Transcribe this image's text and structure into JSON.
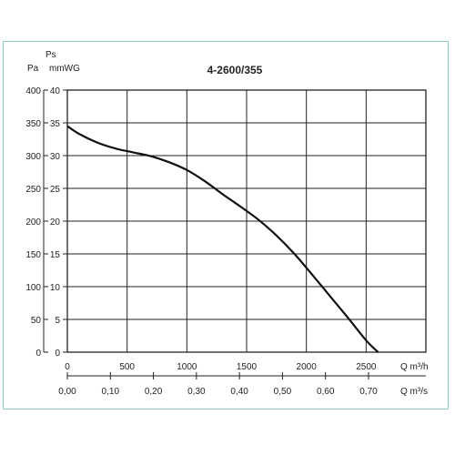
{
  "chart_data": {
    "type": "line",
    "title": "4-2600/355",
    "ylabel_symbol": "Ps",
    "ylabel_pa": "Pa",
    "ylabel_mmwg": "mmWG",
    "xlabel_m3h": "Q m³/h",
    "xlabel_m3s": "Q m³/s",
    "x_ticks_m3h": [
      "0",
      "500",
      "1000",
      "1500",
      "2000",
      "2500"
    ],
    "x_ticks_m3s": [
      "0,00",
      "0,10",
      "0,20",
      "0,30",
      "0,40",
      "0,50",
      "0,60",
      "0,70"
    ],
    "y_ticks_pa": [
      "0",
      "50",
      "100",
      "150",
      "200",
      "250",
      "300",
      "350",
      "400"
    ],
    "y_ticks_mmwg": [
      "0",
      "5",
      "10",
      "15",
      "20",
      "25",
      "30",
      "35",
      "40"
    ],
    "xlim_m3h": [
      0,
      3000
    ],
    "xlim_m3s": [
      0,
      0.8333
    ],
    "ylim_pa": [
      0,
      400
    ],
    "ylim_mmwg": [
      0,
      40
    ],
    "grid": true,
    "series": [
      {
        "x": [
          0,
          100,
          250,
          400,
          550,
          700,
          850,
          1000,
          1150,
          1300,
          1450,
          1600,
          1750,
          1900,
          2050,
          2200,
          2350,
          2500,
          2600
        ],
        "y": [
          345,
          333,
          320,
          311,
          305,
          299,
          290,
          278,
          261,
          241,
          222,
          202,
          178,
          150,
          118,
          85,
          52,
          18,
          0
        ]
      }
    ]
  }
}
